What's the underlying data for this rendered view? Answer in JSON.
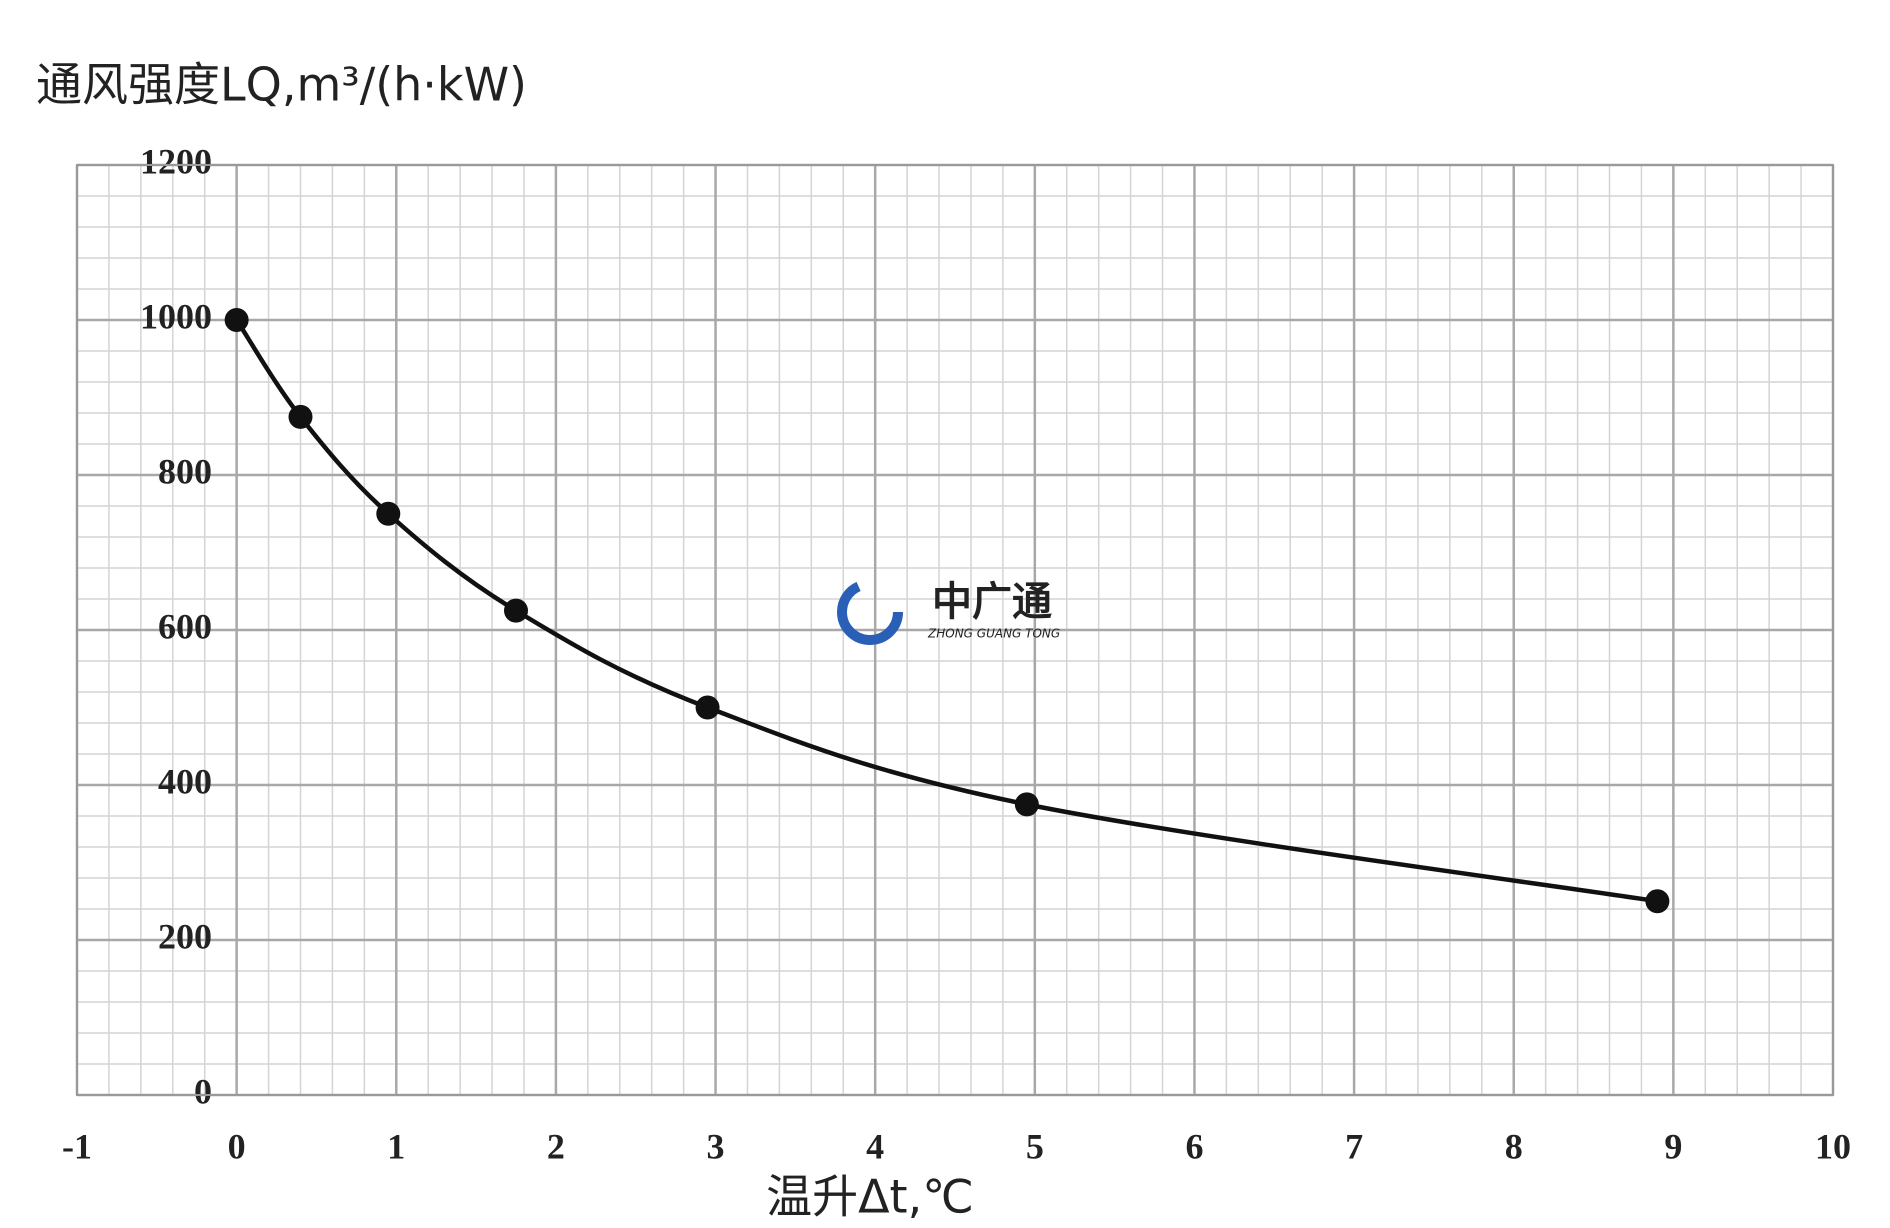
{
  "chart_data": {
    "type": "line",
    "y_label": "通风强度LQ,m³/(h·kW)",
    "x_label": "温升Δt,℃",
    "watermark": "中广通",
    "watermark_sub": "ZHONG GUANG TONG",
    "x": [
      0,
      0.4,
      0.95,
      1.75,
      2.95,
      4.95,
      8.9
    ],
    "series": [
      {
        "color": "#111111",
        "values": [
          1000,
          875,
          750,
          625,
          500,
          375,
          250
        ]
      }
    ],
    "xlim": [
      -1,
      10
    ],
    "xticks": [
      -1,
      0,
      1,
      2,
      3,
      4,
      5,
      6,
      7,
      8,
      9,
      10
    ],
    "ylim": [
      0,
      1200
    ],
    "yticks": [
      0,
      200,
      400,
      600,
      800,
      1000,
      1200
    ],
    "grid": true,
    "minor_grid": 5
  }
}
